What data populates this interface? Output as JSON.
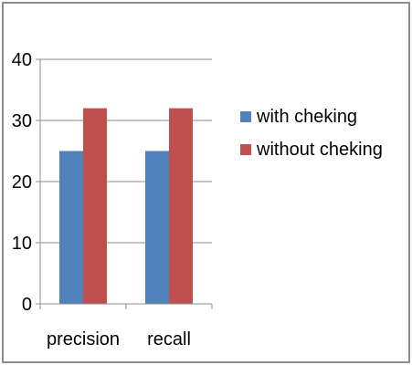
{
  "chart_data": {
    "type": "bar",
    "title": "",
    "xlabel": "",
    "ylabel": "",
    "categories": [
      "precision",
      "recall"
    ],
    "series": [
      {
        "name": "with cheking",
        "values": [
          25,
          25
        ],
        "color": "#4f81bd"
      },
      {
        "name": "without cheking",
        "values": [
          32,
          32
        ],
        "color": "#c0504d"
      }
    ],
    "ylim": [
      0,
      40
    ],
    "yticks": [
      0,
      10,
      20,
      30,
      40
    ],
    "grid": true,
    "legend_position": "right"
  }
}
